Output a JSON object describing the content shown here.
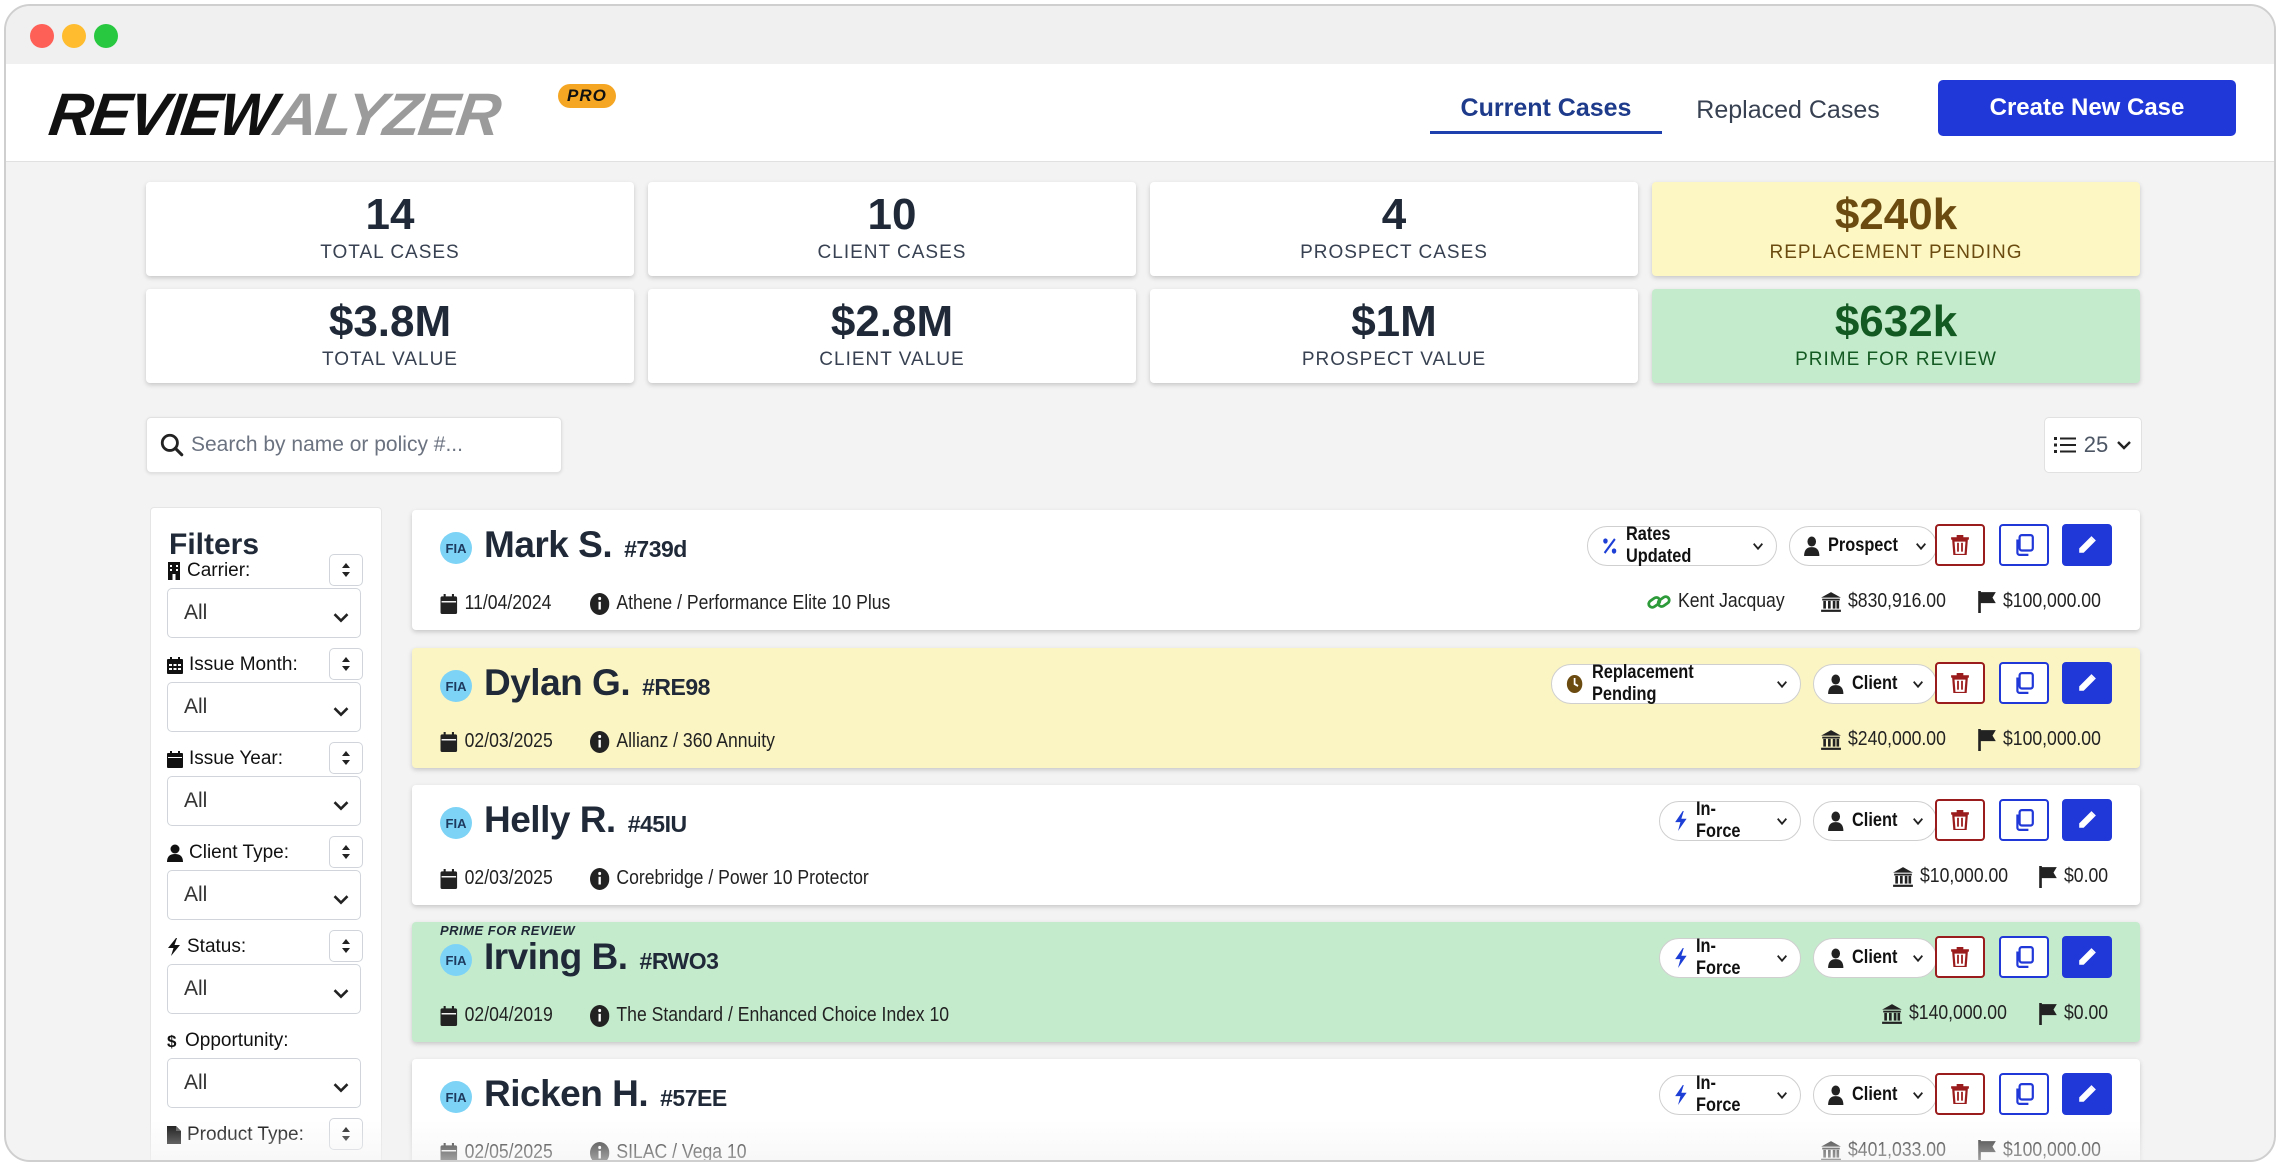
{
  "app": {
    "logo_main": "REVIEW",
    "logo_accent": "ALYZER",
    "logo_badge": "PRO"
  },
  "nav": {
    "tabs": [
      "Current Cases",
      "Replaced Cases"
    ],
    "active_tab": "Current Cases",
    "create_button": "Create New Case"
  },
  "stats": [
    {
      "value": "14",
      "label": "TOTAL CASES",
      "tone": "white"
    },
    {
      "value": "10",
      "label": "CLIENT CASES",
      "tone": "white"
    },
    {
      "value": "4",
      "label": "PROSPECT CASES",
      "tone": "white"
    },
    {
      "value": "$240k",
      "label": "REPLACEMENT PENDING",
      "tone": "yellow"
    },
    {
      "value": "$3.8M",
      "label": "TOTAL VALUE",
      "tone": "white"
    },
    {
      "value": "$2.8M",
      "label": "CLIENT VALUE",
      "tone": "white"
    },
    {
      "value": "$1M",
      "label": "PROSPECT VALUE",
      "tone": "white"
    },
    {
      "value": "$632k",
      "label": "PRIME FOR REVIEW",
      "tone": "green"
    }
  ],
  "search": {
    "placeholder": "Search by name or policy #..."
  },
  "page_size": "25",
  "filters": {
    "title": "Filters",
    "fields": [
      {
        "label": "Carrier:",
        "value": "All",
        "icon": "building-icon"
      },
      {
        "label": "Issue Month:",
        "value": "All",
        "icon": "calendar-grid-icon"
      },
      {
        "label": "Issue Year:",
        "value": "All",
        "icon": "calendar-icon"
      },
      {
        "label": "Client Type:",
        "value": "All",
        "icon": "user-icon"
      },
      {
        "label": "Status:",
        "value": "All",
        "icon": "bolt-icon"
      },
      {
        "label": "Opportunity:",
        "value": "All",
        "icon": "dollar-icon"
      },
      {
        "label": "Product Type:",
        "value": "",
        "icon": "file-icon"
      }
    ]
  },
  "cases": [
    {
      "badge": "FIA",
      "name": "Mark S.",
      "policy": "#739d",
      "tone": "white",
      "prime_label": "",
      "date": "11/04/2024",
      "product": "Athene / Performance Elite 10 Plus",
      "status": "Rates Updated",
      "status_icon": "percent-icon",
      "client_type": "Prospect",
      "agent": "Kent Jacquay",
      "value": "$830,916.00",
      "flag_value": "$100,000.00"
    },
    {
      "badge": "FIA",
      "name": "Dylan G.",
      "policy": "#RE98",
      "tone": "yellow",
      "prime_label": "",
      "date": "02/03/2025",
      "product": "Allianz / 360 Annuity",
      "status": "Replacement Pending",
      "status_icon": "clock-icon",
      "client_type": "Client",
      "agent": "",
      "value": "$240,000.00",
      "flag_value": "$100,000.00"
    },
    {
      "badge": "FIA",
      "name": "Helly R.",
      "policy": "#45IU",
      "tone": "white",
      "prime_label": "",
      "date": "02/03/2025",
      "product": "Corebridge / Power 10 Protector",
      "status": "In-Force",
      "status_icon": "bolt-icon",
      "client_type": "Client",
      "agent": "",
      "value": "$10,000.00",
      "flag_value": "$0.00"
    },
    {
      "badge": "FIA",
      "name": "Irving B.",
      "policy": "#RWO3",
      "tone": "green",
      "prime_label": "PRIME FOR REVIEW",
      "date": "02/04/2019",
      "product": "The Standard / Enhanced Choice Index 10",
      "status": "In-Force",
      "status_icon": "bolt-icon",
      "client_type": "Client",
      "agent": "",
      "value": "$140,000.00",
      "flag_value": "$0.00"
    },
    {
      "badge": "FIA",
      "name": "Ricken H.",
      "policy": "#57EE",
      "tone": "white",
      "prime_label": "",
      "date": "02/05/2025",
      "product": "SILAC / Vega 10",
      "status": "In-Force",
      "status_icon": "bolt-icon",
      "client_type": "Client",
      "agent": "",
      "value": "$401,033.00",
      "flag_value": "$100,000.00"
    }
  ]
}
